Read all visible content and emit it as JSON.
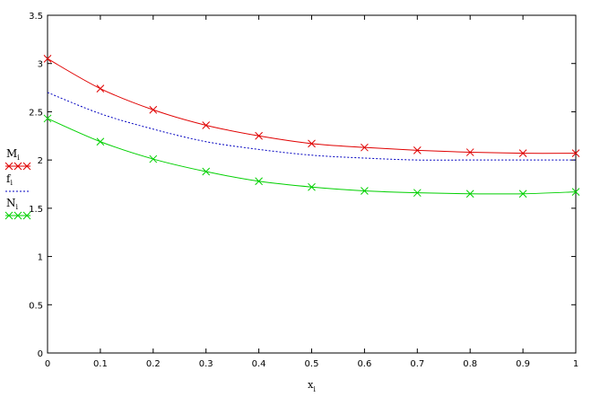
{
  "chart_data": {
    "type": "line",
    "x": [
      0,
      0.1,
      0.2,
      0.3,
      0.4,
      0.5,
      0.6,
      0.7,
      0.8,
      0.9,
      1.0
    ],
    "xlim": [
      0,
      1
    ],
    "ylim": [
      0,
      3.5
    ],
    "x_ticks": [
      0,
      0.1,
      0.2,
      0.3,
      0.4,
      0.5,
      0.6,
      0.7,
      0.8,
      0.9,
      1
    ],
    "y_ticks": [
      0,
      0.5,
      1,
      1.5,
      2,
      2.5,
      3,
      3.5
    ],
    "xlabel": {
      "base": "x",
      "sub": "i"
    },
    "ylabel": "",
    "title": "",
    "grid": false,
    "legend_position": "left",
    "series": [
      {
        "name": {
          "base": "M",
          "sub": "i"
        },
        "color": "#e00000",
        "style": "solid",
        "marker": "x",
        "values": [
          3.05,
          2.74,
          2.52,
          2.36,
          2.25,
          2.17,
          2.13,
          2.1,
          2.08,
          2.07,
          2.07
        ]
      },
      {
        "name": {
          "base": "f",
          "sub": "i"
        },
        "color": "#0000c0",
        "style": "dotted",
        "marker": "none",
        "values": [
          2.7,
          2.48,
          2.32,
          2.19,
          2.11,
          2.05,
          2.02,
          2.0,
          2.0,
          2.0,
          2.0
        ]
      },
      {
        "name": {
          "base": "N",
          "sub": "i"
        },
        "color": "#00d000",
        "style": "solid",
        "marker": "x",
        "values": [
          2.43,
          2.19,
          2.01,
          1.88,
          1.78,
          1.72,
          1.68,
          1.66,
          1.65,
          1.65,
          1.67
        ]
      }
    ]
  }
}
